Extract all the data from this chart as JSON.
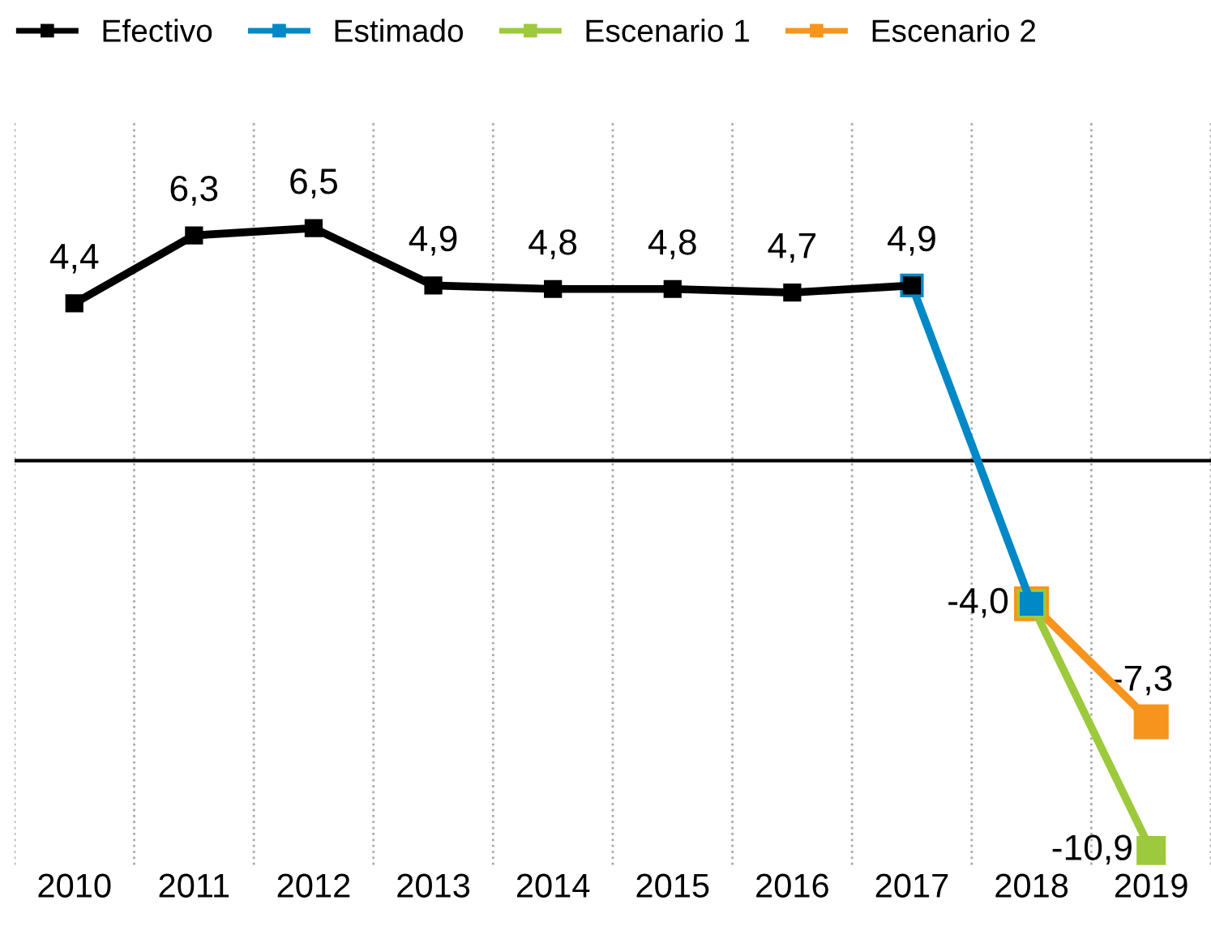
{
  "chart_data": {
    "type": "line",
    "categories": [
      "2010",
      "2011",
      "2012",
      "2013",
      "2014",
      "2015",
      "2016",
      "2017",
      "2018",
      "2019"
    ],
    "series": [
      {
        "name": "Efectivo",
        "color": "#000000",
        "values": [
          4.4,
          6.3,
          6.5,
          4.9,
          4.8,
          4.8,
          4.7,
          4.9,
          null,
          null
        ],
        "value_labels": [
          "4,4",
          "6,3",
          "6,5",
          "4,9",
          "4,8",
          "4,8",
          "4,7",
          "4,9",
          null,
          null
        ]
      },
      {
        "name": "Estimado",
        "color": "#0088c7",
        "values": [
          null,
          null,
          null,
          null,
          null,
          null,
          null,
          4.9,
          -4.0,
          null
        ],
        "value_labels": [
          null,
          null,
          null,
          null,
          null,
          null,
          null,
          null,
          "-4,0",
          null
        ]
      },
      {
        "name": "Escenario 1",
        "color": "#9cca3c",
        "values": [
          null,
          null,
          null,
          null,
          null,
          null,
          null,
          null,
          -4.0,
          -10.9
        ],
        "value_labels": [
          null,
          null,
          null,
          null,
          null,
          null,
          null,
          null,
          null,
          "-10,9"
        ]
      },
      {
        "name": "Escenario 2",
        "color": "#f7941d",
        "values": [
          null,
          null,
          null,
          null,
          null,
          null,
          null,
          null,
          -4.0,
          -7.3
        ],
        "value_labels": [
          null,
          null,
          null,
          null,
          null,
          null,
          null,
          null,
          null,
          "-7,3"
        ]
      }
    ],
    "ylim": [
      -11.3,
      9.5
    ],
    "tick_labels": "x",
    "grid": "x",
    "legend": "top left",
    "marker": "square",
    "line_style": "solid"
  }
}
